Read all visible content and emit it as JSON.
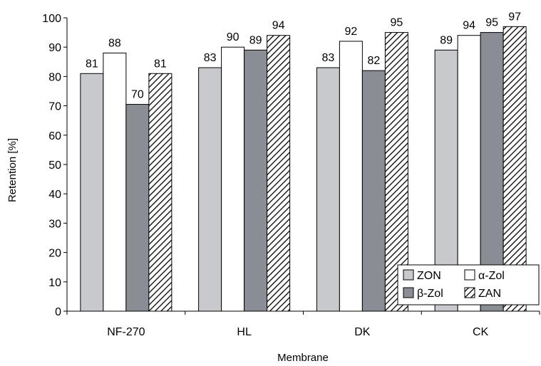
{
  "chart_data": {
    "type": "bar",
    "title": "",
    "xlabel": "Membrane",
    "ylabel": "Retention [%]",
    "categories": [
      "NF-270",
      "HL",
      "DK",
      "CK"
    ],
    "ylim": [
      0,
      100
    ],
    "yticks": [
      0,
      10,
      20,
      30,
      40,
      50,
      60,
      70,
      80,
      90,
      100
    ],
    "grid": false,
    "legend_position": "bottom-right",
    "series": [
      {
        "name": "ZON",
        "values": [
          81,
          83,
          83,
          89
        ],
        "labels": [
          "81",
          "83",
          "83",
          "89"
        ],
        "fill": "#c8c9cc",
        "pattern": "solid"
      },
      {
        "name": "α-Zol",
        "values": [
          88,
          90,
          92,
          94
        ],
        "labels": [
          "88",
          "90",
          "92",
          "94"
        ],
        "fill": "#ffffff",
        "pattern": "solid"
      },
      {
        "name": "β-Zol",
        "values": [
          70.5,
          89,
          82,
          95
        ],
        "labels": [
          "70",
          "89",
          "82",
          "95"
        ],
        "fill": "#8a8d94",
        "pattern": "solid"
      },
      {
        "name": "ZAN",
        "values": [
          81,
          94,
          95,
          97
        ],
        "labels": [
          "81",
          "94",
          "95",
          "97"
        ],
        "fill": "#ffffff",
        "pattern": "hatch"
      }
    ]
  }
}
